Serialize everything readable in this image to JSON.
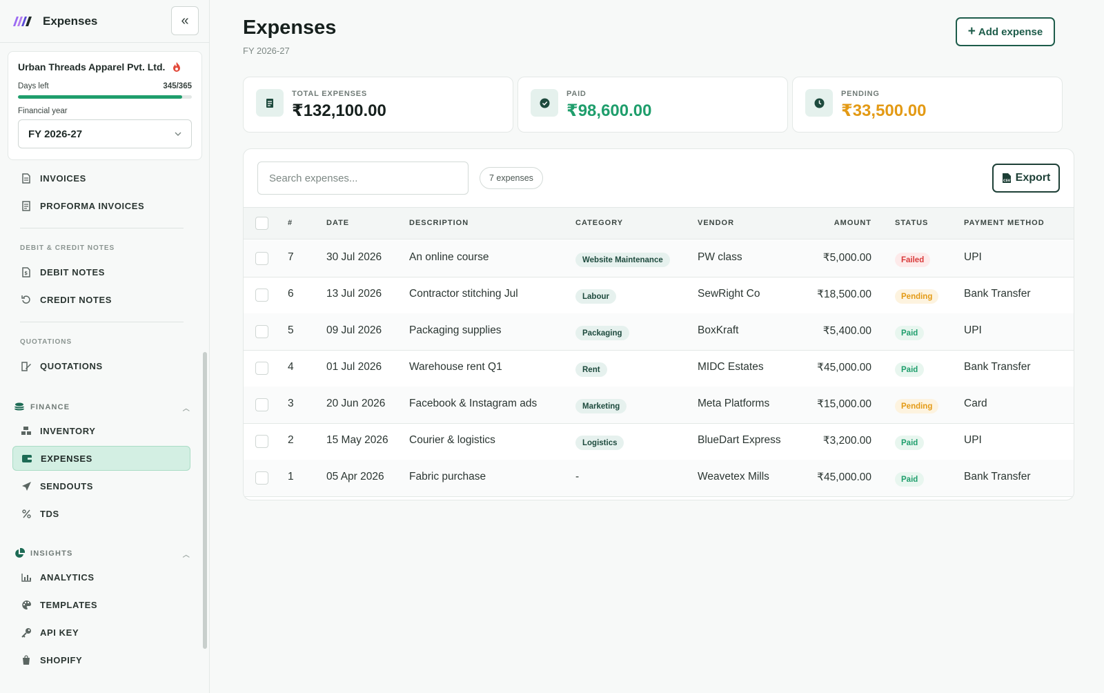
{
  "app": {
    "title": "Expenses",
    "collapse_icon": "double-chevron-left-icon"
  },
  "org": {
    "name": "Urban Threads Apparel Pvt. Ltd.",
    "days_left_label": "Days left",
    "days_left_value": "345/365",
    "days_left_fraction": 0.945,
    "fy_label": "Financial year",
    "fy_value": "FY 2026-27"
  },
  "nav": {
    "invoices": "INVOICES",
    "proforma": "PROFORMA INVOICES",
    "debit_credit_section": "DEBIT & CREDIT NOTES",
    "debit_notes": "DEBIT NOTES",
    "credit_notes": "CREDIT NOTES",
    "quotations_section": "QUOTATIONS",
    "quotations": "QUOTATIONS",
    "finance_group": "FINANCE",
    "inventory": "INVENTORY",
    "expenses": "EXPENSES",
    "sendouts": "SENDOUTS",
    "tds": "TDS",
    "insights_group": "INSIGHTS",
    "analytics": "ANALYTICS",
    "templates": "TEMPLATES",
    "api_key": "API KEY",
    "shopify": "SHOPIFY"
  },
  "header": {
    "title": "Expenses",
    "subtitle": "FY 2026-27",
    "add_button": "Add expense"
  },
  "stats": {
    "total_label": "TOTAL EXPENSES",
    "total_value": "₹132,100.00",
    "paid_label": "PAID",
    "paid_value": "₹98,600.00",
    "pending_label": "PENDING",
    "pending_value": "₹33,500.00"
  },
  "colors": {
    "accent": "#1d5c4a",
    "paid": "#1f9e6c",
    "pending": "#e39a15",
    "failed": "#d83a3a"
  },
  "toolbar": {
    "search_placeholder": "Search expenses...",
    "count": "7 expenses",
    "export_button": "Export"
  },
  "table": {
    "headers": {
      "num": "#",
      "date": "DATE",
      "description": "DESCRIPTION",
      "category": "CATEGORY",
      "vendor": "VENDOR",
      "amount": "AMOUNT",
      "status": "STATUS",
      "method": "PAYMENT METHOD"
    },
    "rows": [
      {
        "num": "7",
        "date": "30 Jul 2026",
        "description": "An online course",
        "category": "Website Maintenance",
        "vendor": "PW class",
        "amount": "₹5,000.00",
        "status": "Failed",
        "method": "UPI"
      },
      {
        "num": "6",
        "date": "13 Jul 2026",
        "description": "Contractor stitching Jul",
        "category": "Labour",
        "vendor": "SewRight Co",
        "amount": "₹18,500.00",
        "status": "Pending",
        "method": "Bank Transfer"
      },
      {
        "num": "5",
        "date": "09 Jul 2026",
        "description": "Packaging supplies",
        "category": "Packaging",
        "vendor": "BoxKraft",
        "amount": "₹5,400.00",
        "status": "Paid",
        "method": "UPI"
      },
      {
        "num": "4",
        "date": "01 Jul 2026",
        "description": "Warehouse rent Q1",
        "category": "Rent",
        "vendor": "MIDC Estates",
        "amount": "₹45,000.00",
        "status": "Paid",
        "method": "Bank Transfer"
      },
      {
        "num": "3",
        "date": "20 Jun 2026",
        "description": "Facebook & Instagram ads",
        "category": "Marketing",
        "vendor": "Meta Platforms",
        "amount": "₹15,000.00",
        "status": "Pending",
        "method": "Card"
      },
      {
        "num": "2",
        "date": "15 May 2026",
        "description": "Courier & logistics",
        "category": "Logistics",
        "vendor": "BlueDart Express",
        "amount": "₹3,200.00",
        "status": "Paid",
        "method": "UPI"
      },
      {
        "num": "1",
        "date": "05 Apr 2026",
        "description": "Fabric purchase",
        "category": "-",
        "vendor": "Weavetex Mills",
        "amount": "₹45,000.00",
        "status": "Paid",
        "method": "Bank Transfer"
      }
    ]
  }
}
